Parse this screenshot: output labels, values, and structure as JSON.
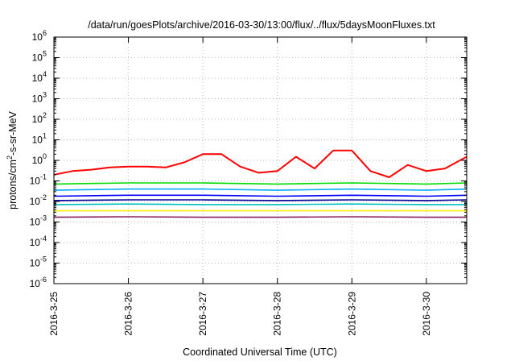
{
  "chart_data": {
    "type": "line",
    "title": "/data/run/goesPlots/archive/2016-03-30/13:00/flux/../flux/5daysMoonFluxes.txt",
    "xlabel": "Coordinated Universal Time (UTC)",
    "ylabel": "protons/cm2-s-sr-MeV",
    "ylabel_parts": {
      "pre": "protons/cm",
      "sup": "2",
      "post": "-s-sr-MeV"
    },
    "x_type": "date",
    "xlim": [
      "2016-03-25",
      "2016-03-30 13:00"
    ],
    "x_ticks": [
      "2016-3-25",
      "2016-3-26",
      "2016-3-27",
      "2016-3-28",
      "2016-3-29",
      "2016-3-30"
    ],
    "y_scale": "log",
    "ylim": [
      1e-06,
      1000000.0
    ],
    "y_ticks": [
      {
        "base": "10",
        "exp": "-6"
      },
      {
        "base": "10",
        "exp": "-5"
      },
      {
        "base": "10",
        "exp": "-4"
      },
      {
        "base": "10",
        "exp": "-3"
      },
      {
        "base": "10",
        "exp": "-2"
      },
      {
        "base": "10",
        "exp": "-1"
      },
      {
        "base": "10",
        "exp": "0"
      },
      {
        "base": "10",
        "exp": "1"
      },
      {
        "base": "10",
        "exp": "2"
      },
      {
        "base": "10",
        "exp": "3"
      },
      {
        "base": "10",
        "exp": "4"
      },
      {
        "base": "10",
        "exp": "5"
      },
      {
        "base": "10",
        "exp": "6"
      }
    ],
    "grid": true,
    "series": [
      {
        "color": "#ff0000",
        "x": [
          "2016-03-25 00:00",
          "2016-03-25 06:00",
          "2016-03-25 12:00",
          "2016-03-25 18:00",
          "2016-03-26 00:00",
          "2016-03-26 06:00",
          "2016-03-26 12:00",
          "2016-03-26 18:00",
          "2016-03-27 00:00",
          "2016-03-27 06:00",
          "2016-03-27 12:00",
          "2016-03-27 18:00",
          "2016-03-28 00:00",
          "2016-03-28 06:00",
          "2016-03-28 12:00",
          "2016-03-28 18:00",
          "2016-03-29 00:00",
          "2016-03-29 06:00",
          "2016-03-29 12:00",
          "2016-03-29 18:00",
          "2016-03-30 00:00",
          "2016-03-30 06:00",
          "2016-03-30 13:00"
        ],
        "values": [
          0.2,
          0.3,
          0.35,
          0.45,
          0.5,
          0.5,
          0.45,
          0.8,
          2,
          2,
          0.5,
          0.25,
          0.3,
          1.5,
          0.4,
          3,
          3,
          0.3,
          0.15,
          0.6,
          0.3,
          0.4,
          1.5
        ]
      },
      {
        "color": "#00dd00",
        "x": [
          "2016-03-25 00:00",
          "2016-03-26 00:00",
          "2016-03-27 00:00",
          "2016-03-28 00:00",
          "2016-03-29 00:00",
          "2016-03-30 00:00",
          "2016-03-30 13:00"
        ],
        "values": [
          0.07,
          0.08,
          0.08,
          0.07,
          0.08,
          0.07,
          0.08
        ]
      },
      {
        "color": "#00aaff",
        "x": [
          "2016-03-25 00:00",
          "2016-03-26 00:00",
          "2016-03-27 00:00",
          "2016-03-28 00:00",
          "2016-03-29 00:00",
          "2016-03-30 00:00",
          "2016-03-30 13:00"
        ],
        "values": [
          0.035,
          0.04,
          0.04,
          0.035,
          0.04,
          0.035,
          0.04
        ]
      },
      {
        "color": "#0000ff",
        "x": [
          "2016-03-25 00:00",
          "2016-03-26 00:00",
          "2016-03-27 00:00",
          "2016-03-28 00:00",
          "2016-03-29 00:00",
          "2016-03-30 00:00",
          "2016-03-30 13:00"
        ],
        "values": [
          0.018,
          0.02,
          0.02,
          0.018,
          0.02,
          0.018,
          0.02
        ]
      },
      {
        "color": "#000099",
        "x": [
          "2016-03-25 00:00",
          "2016-03-26 00:00",
          "2016-03-27 00:00",
          "2016-03-28 00:00",
          "2016-03-29 00:00",
          "2016-03-30 00:00",
          "2016-03-30 13:00"
        ],
        "values": [
          0.011,
          0.012,
          0.012,
          0.011,
          0.012,
          0.011,
          0.012
        ]
      },
      {
        "color": "#00c0c0",
        "x": [
          "2016-03-25 00:00",
          "2016-03-26 00:00",
          "2016-03-27 00:00",
          "2016-03-28 00:00",
          "2016-03-29 00:00",
          "2016-03-30 00:00",
          "2016-03-30 13:00"
        ],
        "values": [
          0.007,
          0.0075,
          0.007,
          0.007,
          0.0075,
          0.007,
          0.007
        ]
      },
      {
        "color": "#ffee00",
        "x": [
          "2016-03-25 00:00",
          "2016-03-26 00:00",
          "2016-03-27 00:00",
          "2016-03-28 00:00",
          "2016-03-29 00:00",
          "2016-03-30 00:00",
          "2016-03-30 13:00"
        ],
        "values": [
          0.0035,
          0.0035,
          0.0035,
          0.0035,
          0.0035,
          0.0035,
          0.0035
        ]
      },
      {
        "color": "#8b2060",
        "x": [
          "2016-03-25 00:00",
          "2016-03-26 00:00",
          "2016-03-27 00:00",
          "2016-03-28 00:00",
          "2016-03-29 00:00",
          "2016-03-30 00:00",
          "2016-03-30 13:00"
        ],
        "values": [
          0.0017,
          0.0018,
          0.0017,
          0.0017,
          0.0018,
          0.0017,
          0.0017
        ]
      }
    ]
  }
}
